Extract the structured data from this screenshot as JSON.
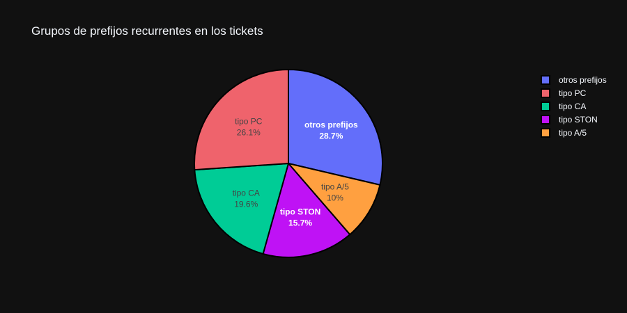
{
  "chart_data": {
    "type": "pie",
    "title": "Grupos de prefijos recurrentes en los tickets",
    "categories": [
      "otros prefijos",
      "tipo PC",
      "tipo CA",
      "tipo STON",
      "tipo A/5"
    ],
    "values": [
      28.7,
      26.1,
      19.6,
      15.7,
      10
    ],
    "value_labels": [
      "28.7%",
      "26.1%",
      "19.6%",
      "15.7%",
      "10%"
    ],
    "slice_order": [
      "otros prefijos",
      "tipo A/5",
      "tipo STON",
      "tipo CA",
      "tipo PC"
    ],
    "direction": "clockwise",
    "start_angle_deg": 0,
    "colors": {
      "otros prefijos": "#636efa",
      "tipo PC": "#ef636c",
      "tipo CA": "#00cc96",
      "tipo STON": "#bf12f5",
      "tipo A/5": "#ffa040"
    },
    "label_colors": {
      "otros prefijos": "#ffffff",
      "tipo PC": "#444444",
      "tipo CA": "#444444",
      "tipo STON": "#ffffff",
      "tipo A/5": "#444444"
    },
    "legend_placement": "top-right",
    "background": "#111111"
  }
}
